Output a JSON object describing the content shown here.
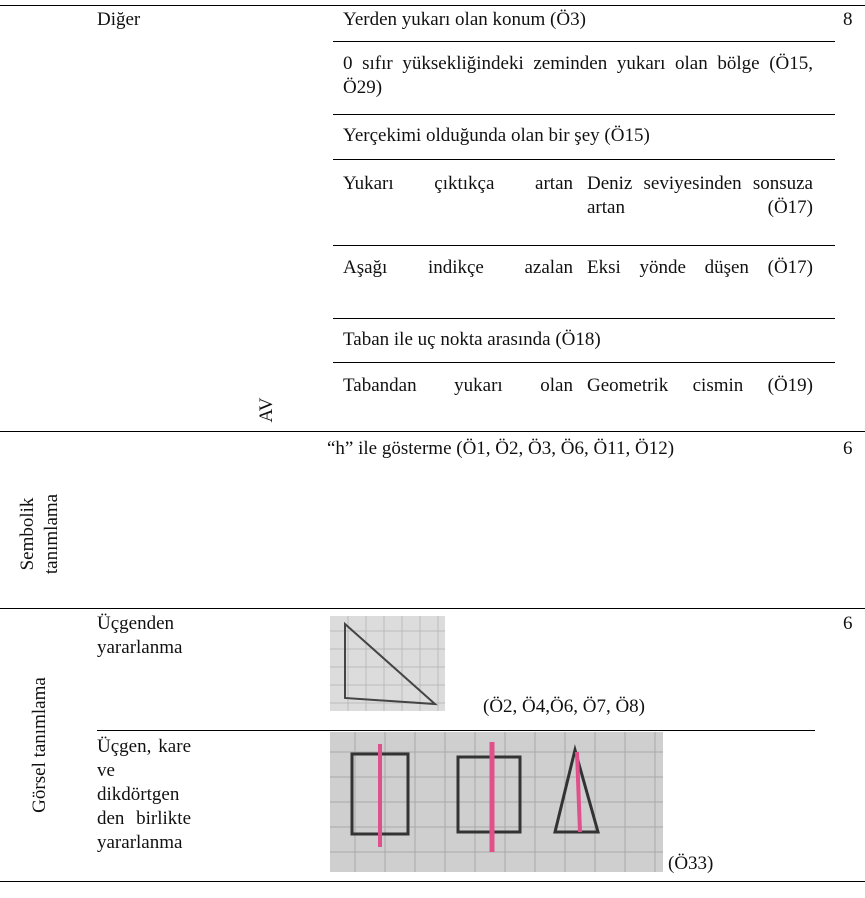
{
  "section1": {
    "label": "Diğer",
    "code": "AV",
    "count": "8",
    "items": [
      "Yerden yukarı olan konum (Ö3)",
      "0 sıfır yüksekliğindeki zeminden yukarı olan bölge (Ö15, Ö29)",
      "Yerçekimi olduğunda olan bir şey (Ö15)"
    ],
    "pairs": [
      [
        "Yukarı çıktıkça artan",
        "Deniz seviyesinden sonsuza artan (Ö17)"
      ],
      [
        "Aşağı indikçe azalan",
        "Eksi yönde düşen (Ö17)"
      ]
    ],
    "item_after": "Taban ile uç nokta arasında (Ö18)",
    "last_pair": [
      "Tabandan yukarı olan",
      "Geometrik cismin (Ö19)"
    ]
  },
  "section2": {
    "category": "Sembolik tanımlama",
    "item": "“h” ile gösterme (Ö1, Ö2, Ö3, Ö6, Ö11, Ö12)",
    "count": "6"
  },
  "section3": {
    "category": "Görsel tanımlama",
    "count": "6",
    "rows": [
      {
        "label": "Üçgenden yararlanma",
        "caption": "(Ö2, Ö4,Ö6, Ö7, Ö8)"
      },
      {
        "label": "Üçgen, kare ve dikdörtgen den birlikte yararlanma",
        "caption": "(Ö33)"
      }
    ]
  }
}
